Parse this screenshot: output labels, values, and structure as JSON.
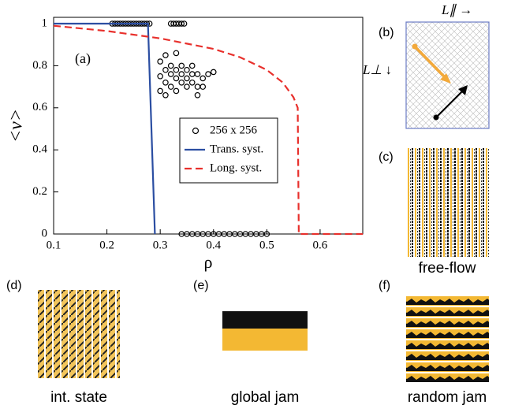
{
  "chart_data": {
    "type": "line",
    "panel_label": "(a)",
    "xlabel": "ρ",
    "ylabel": "<v>",
    "xlim": [
      0.1,
      0.68
    ],
    "ylim": [
      0,
      1.03
    ],
    "xticks": [
      0.1,
      0.2,
      0.3,
      0.4,
      0.5,
      0.6
    ],
    "yticks": [
      0,
      0.2,
      0.4,
      0.6,
      0.8,
      1
    ],
    "series": [
      {
        "name": "256 x 256",
        "style": "markers",
        "color": "#000000",
        "x": [
          0.21,
          0.215,
          0.22,
          0.225,
          0.23,
          0.235,
          0.24,
          0.245,
          0.25,
          0.255,
          0.26,
          0.265,
          0.27,
          0.275,
          0.28,
          0.32,
          0.325,
          0.33,
          0.335,
          0.34,
          0.345,
          0.34,
          0.35,
          0.36,
          0.37,
          0.38,
          0.39,
          0.4,
          0.41,
          0.42,
          0.43,
          0.44,
          0.45,
          0.46,
          0.47,
          0.48,
          0.49,
          0.5,
          0.3,
          0.31,
          0.32,
          0.33,
          0.34,
          0.35,
          0.36,
          0.37,
          0.3,
          0.31,
          0.32,
          0.33,
          0.34,
          0.35,
          0.36,
          0.37,
          0.38,
          0.39,
          0.4,
          0.3,
          0.31,
          0.33,
          0.34,
          0.32,
          0.35,
          0.36,
          0.38,
          0.37,
          0.33,
          0.31
        ],
        "values": [
          1,
          1,
          1,
          1,
          1,
          1,
          1,
          1,
          1,
          1,
          1,
          1,
          1,
          1,
          1,
          1,
          1,
          1,
          1,
          1,
          1,
          0,
          0,
          0,
          0,
          0,
          0,
          0,
          0,
          0,
          0,
          0,
          0,
          0,
          0,
          0,
          0,
          0,
          0.82,
          0.85,
          0.8,
          0.78,
          0.76,
          0.74,
          0.72,
          0.7,
          0.75,
          0.72,
          0.7,
          0.68,
          0.72,
          0.78,
          0.8,
          0.76,
          0.74,
          0.76,
          0.77,
          0.68,
          0.66,
          0.74,
          0.8,
          0.76,
          0.7,
          0.76,
          0.7,
          0.66,
          0.86,
          0.78
        ]
      },
      {
        "name": "Trans. syst.",
        "style": "solid",
        "color": "#2b4ea2",
        "x": [
          0.1,
          0.277,
          0.29
        ],
        "values": [
          1,
          1,
          0
        ]
      },
      {
        "name": "Long. syst.",
        "style": "dashed",
        "color": "#e8302c",
        "x": [
          0.1,
          0.2,
          0.3,
          0.4,
          0.45,
          0.5,
          0.53,
          0.55,
          0.558,
          0.56,
          0.68
        ],
        "values": [
          0.99,
          0.965,
          0.93,
          0.88,
          0.84,
          0.78,
          0.72,
          0.65,
          0.6,
          0,
          0
        ]
      }
    ]
  },
  "panels": {
    "b": {
      "label": "(b)",
      "parallel": "L∥ →",
      "perp": "L⊥ ↓"
    },
    "c": {
      "label": "(c)",
      "caption": "free-flow"
    },
    "d": {
      "label": "(d)",
      "caption": "int. state"
    },
    "e": {
      "label": "(e)",
      "caption": "global jam"
    },
    "f": {
      "label": "(f)",
      "caption": "random jam"
    }
  }
}
